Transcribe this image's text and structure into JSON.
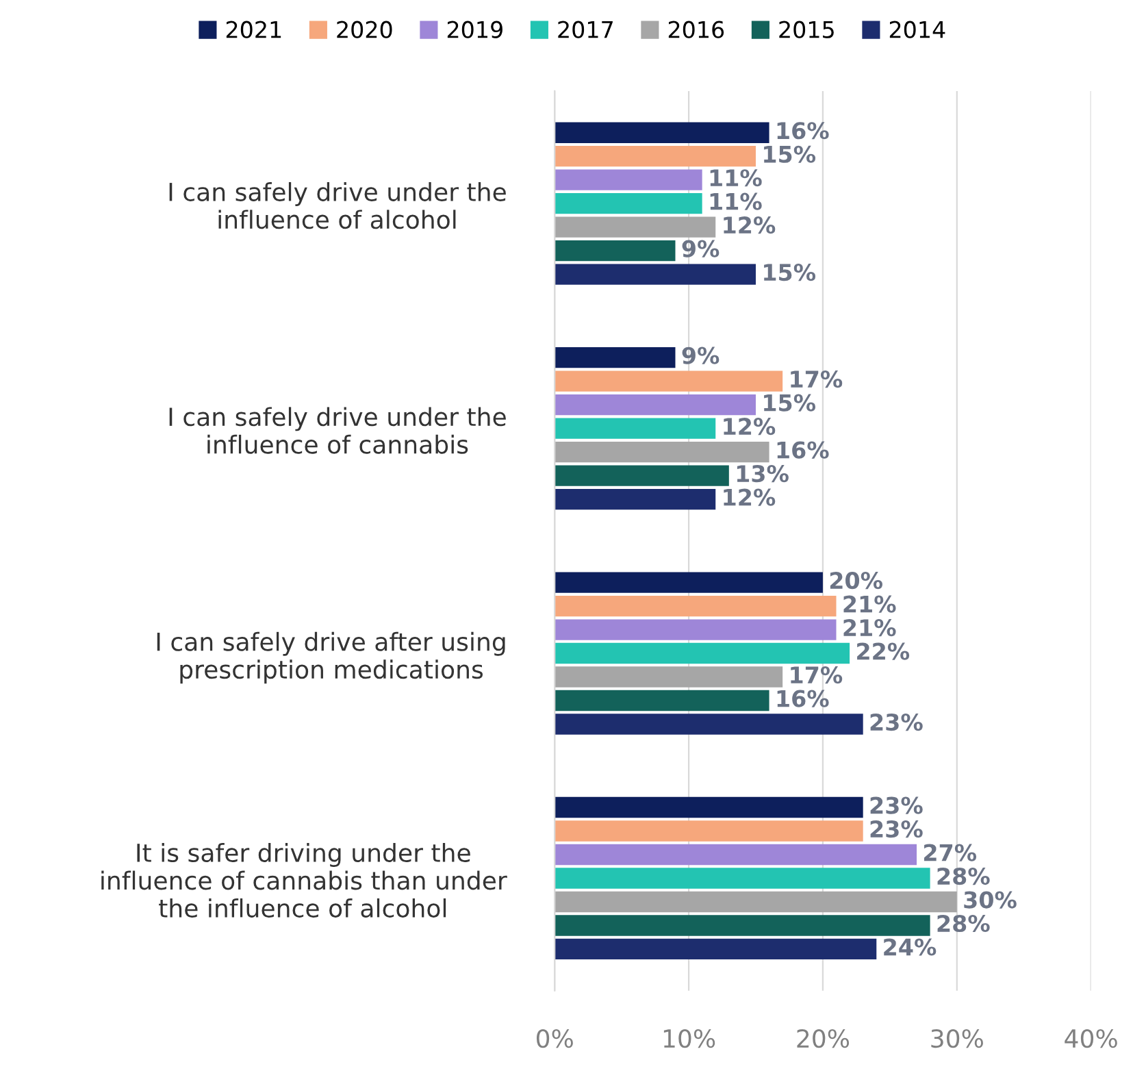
{
  "chart_data": {
    "type": "bar",
    "orientation": "horizontal",
    "categories": [
      "I can safely drive under the\ninfluence of alcohol",
      "I can safely drive under the\ninfluence of cannabis",
      "I can safely drive after using\nprescription medications",
      "It is safer driving under the\ninfluence of cannabis than under\nthe influence of alcohol"
    ],
    "series": [
      {
        "name": "2021",
        "color": "#0d1f5c",
        "values": [
          16,
          9,
          20,
          23
        ],
        "value_labels": [
          "16%",
          "9%",
          "20%",
          "23%"
        ]
      },
      {
        "name": "2020",
        "color": "#f6a77c",
        "values": [
          15,
          17,
          21,
          23
        ],
        "value_labels": [
          "15%",
          "17%",
          "21%",
          "23%"
        ]
      },
      {
        "name": "2019",
        "color": "#9e86d8",
        "values": [
          11,
          15,
          21,
          27
        ],
        "value_labels": [
          "11%",
          "15%",
          "21%",
          "27%"
        ]
      },
      {
        "name": "2017",
        "color": "#23c4b2",
        "values": [
          11,
          12,
          22,
          28
        ],
        "value_labels": [
          "11%",
          "12%",
          "22%",
          "28%"
        ]
      },
      {
        "name": "2016",
        "color": "#a6a6a6",
        "values": [
          12,
          16,
          17,
          30
        ],
        "value_labels": [
          "12%",
          "16%",
          "17%",
          "30%"
        ]
      },
      {
        "name": "2015",
        "color": "#13625a",
        "values": [
          9,
          13,
          16,
          28
        ],
        "value_labels": [
          "9%",
          "13%",
          "16%",
          "28%"
        ]
      },
      {
        "name": "2014",
        "color": "#1d2d6e",
        "values": [
          15,
          12,
          23,
          24
        ],
        "value_labels": [
          "15%",
          "12%",
          "23%",
          "24%"
        ]
      }
    ],
    "xlim": [
      0,
      40
    ],
    "xticks": [
      {
        "value": 0,
        "label": "0%"
      },
      {
        "value": 10,
        "label": "10%"
      },
      {
        "value": 20,
        "label": "20%"
      },
      {
        "value": 30,
        "label": "30%"
      },
      {
        "value": 40,
        "label": "40%"
      }
    ],
    "grid": "x",
    "legend": "top"
  }
}
